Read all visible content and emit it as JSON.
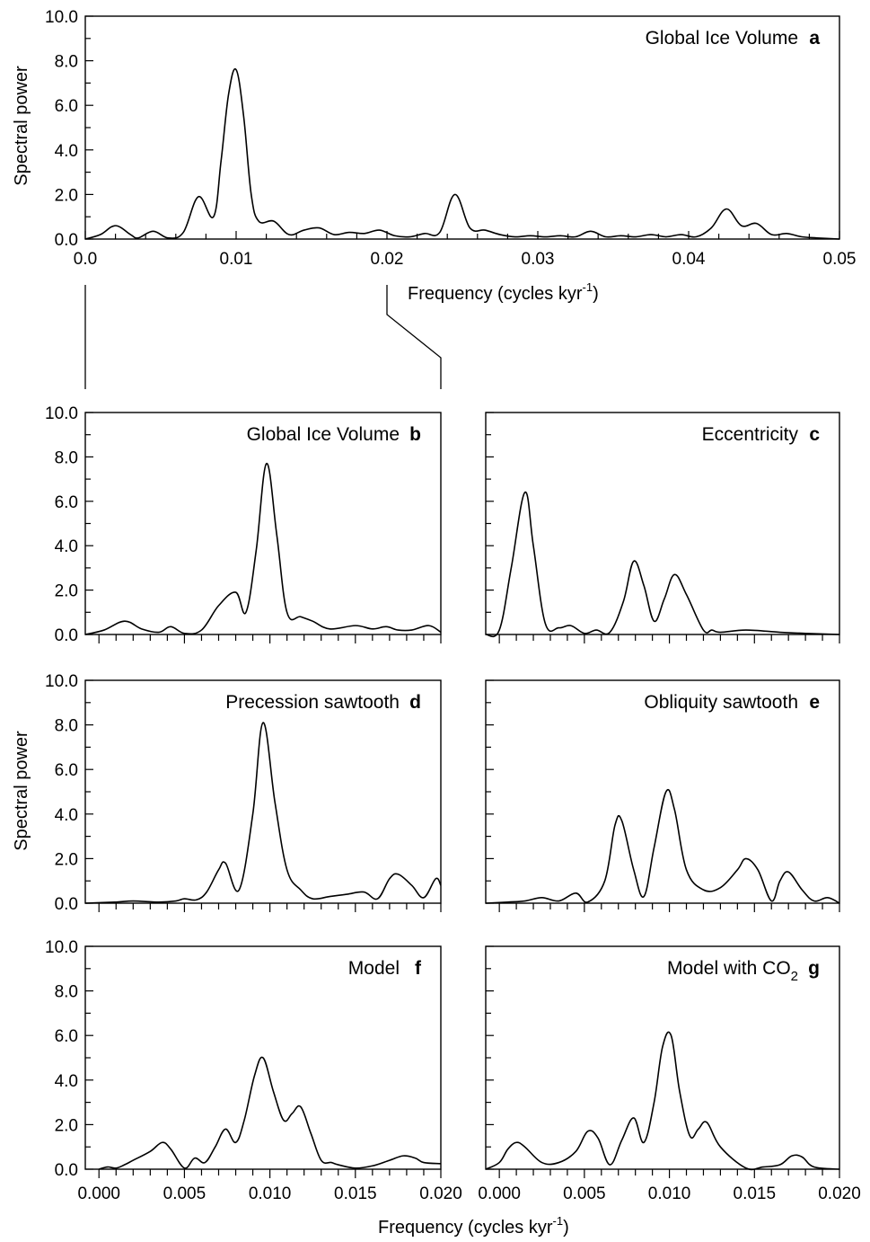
{
  "figure": {
    "ylabel": "Spectral power",
    "xlabel": "Frequency (cycles kyr",
    "xlabel_sup": "-1",
    "xlabel_tail": ")"
  },
  "chart_data": [
    {
      "id": "a",
      "type": "line",
      "title": "Global Ice Volume",
      "letter": "a",
      "xlabel": "Frequency (cycles kyr^-1)",
      "ylabel": "Spectral power",
      "xlim": [
        0,
        0.05
      ],
      "ylim": [
        0,
        10
      ],
      "xticks": [
        "0.0",
        "0.01",
        "0.02",
        "0.03",
        "0.04",
        "0.05"
      ],
      "yticks": [
        "0.0",
        "2.0",
        "4.0",
        "6.0",
        "8.0",
        "10.0"
      ],
      "x": [
        0,
        0.001,
        0.002,
        0.003,
        0.0035,
        0.0045,
        0.0055,
        0.0065,
        0.0075,
        0.0085,
        0.009,
        0.0095,
        0.01,
        0.0105,
        0.011,
        0.0115,
        0.0125,
        0.0135,
        0.0145,
        0.0155,
        0.0165,
        0.0175,
        0.0185,
        0.0195,
        0.0205,
        0.0215,
        0.0225,
        0.0235,
        0.0245,
        0.0255,
        0.0265,
        0.0275,
        0.0285,
        0.0295,
        0.0305,
        0.0315,
        0.0325,
        0.0335,
        0.0345,
        0.0355,
        0.0365,
        0.0375,
        0.0385,
        0.0395,
        0.0405,
        0.0415,
        0.0425,
        0.0435,
        0.0445,
        0.0455,
        0.0465,
        0.0475,
        0.0485,
        0.05
      ],
      "y": [
        0,
        0.2,
        0.6,
        0.2,
        0.05,
        0.35,
        0.05,
        0.3,
        1.9,
        1.0,
        3.5,
        6.5,
        7.6,
        5.5,
        2.0,
        0.8,
        0.8,
        0.2,
        0.4,
        0.5,
        0.2,
        0.3,
        0.25,
        0.4,
        0.15,
        0.1,
        0.25,
        0.3,
        2.0,
        0.5,
        0.4,
        0.2,
        0.1,
        0.15,
        0.1,
        0.15,
        0.1,
        0.35,
        0.1,
        0.15,
        0.1,
        0.2,
        0.1,
        0.2,
        0.1,
        0.5,
        1.35,
        0.6,
        0.7,
        0.2,
        0.25,
        0.1,
        0.05,
        0
      ]
    },
    {
      "id": "b",
      "type": "line",
      "title": "Global Ice Volume",
      "letter": "b",
      "xlim": [
        -0.0008,
        0.02
      ],
      "ylim": [
        0,
        10
      ],
      "yticks": [
        "0.0",
        "2.0",
        "4.0",
        "6.0",
        "8.0",
        "10.0"
      ],
      "x": [
        -0.0008,
        0.0003,
        0.0015,
        0.0025,
        0.0035,
        0.0042,
        0.005,
        0.006,
        0.007,
        0.008,
        0.0086,
        0.0092,
        0.0098,
        0.0104,
        0.011,
        0.0118,
        0.0125,
        0.0135,
        0.015,
        0.016,
        0.0168,
        0.0175,
        0.0183,
        0.0193,
        0.02
      ],
      "y": [
        0,
        0.2,
        0.6,
        0.25,
        0.1,
        0.35,
        0.05,
        0.2,
        1.3,
        1.9,
        1.0,
        3.8,
        7.7,
        4.5,
        1.0,
        0.8,
        0.6,
        0.25,
        0.4,
        0.25,
        0.35,
        0.2,
        0.2,
        0.4,
        0.1
      ]
    },
    {
      "id": "c",
      "type": "line",
      "title": "Eccentricity",
      "letter": "c",
      "xlim": [
        -0.0008,
        0.02
      ],
      "ylim": [
        0,
        10
      ],
      "yticks": [],
      "x": [
        -0.0008,
        0.0,
        0.0007,
        0.0015,
        0.002,
        0.0027,
        0.0035,
        0.0042,
        0.005,
        0.0057,
        0.0065,
        0.0073,
        0.0079,
        0.0085,
        0.0091,
        0.0097,
        0.0103,
        0.011,
        0.012,
        0.0125,
        0.013,
        0.0145,
        0.0165,
        0.018,
        0.02
      ],
      "y": [
        0,
        0.2,
        3.0,
        6.4,
        4.0,
        0.5,
        0.3,
        0.4,
        0.05,
        0.2,
        0.1,
        1.5,
        3.3,
        2.2,
        0.6,
        1.6,
        2.7,
        1.8,
        0.2,
        0.2,
        0.1,
        0.2,
        0.1,
        0.05,
        0
      ]
    },
    {
      "id": "d",
      "type": "line",
      "title": "Precession sawtooth",
      "letter": "d",
      "xlim": [
        -0.0008,
        0.02
      ],
      "ylim": [
        0,
        10
      ],
      "yticks": [
        "0.0",
        "2.0",
        "4.0",
        "6.0",
        "8.0",
        "10.0"
      ],
      "x": [
        -0.0008,
        0.001,
        0.002,
        0.0035,
        0.0045,
        0.005,
        0.0057,
        0.0063,
        0.007,
        0.0074,
        0.0082,
        0.009,
        0.0096,
        0.0103,
        0.011,
        0.0118,
        0.0125,
        0.0135,
        0.0145,
        0.0155,
        0.0163,
        0.017,
        0.0175,
        0.0183,
        0.019,
        0.0197,
        0.02
      ],
      "y": [
        0,
        0.05,
        0.1,
        0.05,
        0.1,
        0.2,
        0.15,
        0.5,
        1.5,
        1.8,
        0.6,
        4.0,
        8.1,
        4.5,
        1.5,
        0.6,
        0.2,
        0.3,
        0.4,
        0.5,
        0.2,
        1.1,
        1.3,
        0.8,
        0.25,
        1.1,
        0.8
      ]
    },
    {
      "id": "e",
      "type": "line",
      "title": "Obliquity sawtooth",
      "letter": "e",
      "xlim": [
        -0.0008,
        0.02
      ],
      "ylim": [
        0,
        10
      ],
      "yticks": [],
      "x": [
        -0.0008,
        0.0005,
        0.0015,
        0.0025,
        0.0035,
        0.0045,
        0.0052,
        0.0062,
        0.0068,
        0.0072,
        0.0079,
        0.0085,
        0.0091,
        0.0098,
        0.0103,
        0.011,
        0.012,
        0.013,
        0.014,
        0.0145,
        0.0152,
        0.016,
        0.0165,
        0.017,
        0.0178,
        0.0185,
        0.0193,
        0.02
      ],
      "y": [
        0,
        0.05,
        0.1,
        0.25,
        0.1,
        0.45,
        0.05,
        1.0,
        3.5,
        3.7,
        1.5,
        0.3,
        2.5,
        5.0,
        4.2,
        1.5,
        0.6,
        0.7,
        1.5,
        2.0,
        1.5,
        0.1,
        1.0,
        1.4,
        0.6,
        0.1,
        0.25,
        0
      ]
    },
    {
      "id": "f",
      "type": "line",
      "title": "Model",
      "letter": "f",
      "xlim": [
        -0.0008,
        0.02
      ],
      "xticks": [
        "0.000",
        "0.005",
        "0.010",
        "0.015",
        "0.020"
      ],
      "ylim": [
        0,
        10
      ],
      "yticks": [
        "0.0",
        "2.0",
        "4.0",
        "6.0",
        "8.0",
        "10.0"
      ],
      "x": [
        0,
        0.0005,
        0.001,
        0.0015,
        0.002,
        0.003,
        0.0037,
        0.0042,
        0.005,
        0.0056,
        0.0062,
        0.0068,
        0.0074,
        0.008,
        0.0085,
        0.0091,
        0.0096,
        0.0102,
        0.0108,
        0.0113,
        0.0118,
        0.0124,
        0.013,
        0.0136,
        0.014,
        0.015,
        0.016,
        0.017,
        0.0178,
        0.0185,
        0.019,
        0.02
      ],
      "y": [
        0,
        0.1,
        0.05,
        0.2,
        0.4,
        0.8,
        1.2,
        0.9,
        0.05,
        0.5,
        0.3,
        1.0,
        1.8,
        1.2,
        2.2,
        4.2,
        5.0,
        3.5,
        2.2,
        2.5,
        2.8,
        1.6,
        0.4,
        0.3,
        0.2,
        0.05,
        0.15,
        0.4,
        0.6,
        0.5,
        0.3,
        0.25
      ]
    },
    {
      "id": "g",
      "type": "line",
      "title": "Model with CO",
      "title_sub": "2",
      "letter": "g",
      "xlim": [
        -0.0008,
        0.02
      ],
      "xticks": [
        "0.000",
        "0.005",
        "0.010",
        "0.015",
        "0.020"
      ],
      "ylim": [
        0,
        10
      ],
      "yticks": [],
      "x": [
        -0.0008,
        0.0,
        0.0005,
        0.001,
        0.0015,
        0.0025,
        0.0035,
        0.0045,
        0.0052,
        0.0058,
        0.0065,
        0.0072,
        0.0079,
        0.0085,
        0.0091,
        0.0096,
        0.0101,
        0.0106,
        0.0112,
        0.0117,
        0.0122,
        0.013,
        0.0145,
        0.0155,
        0.0165,
        0.0172,
        0.0178,
        0.0185,
        0.02
      ],
      "y": [
        0,
        0.3,
        0.9,
        1.2,
        1.0,
        0.3,
        0.3,
        0.8,
        1.7,
        1.4,
        0.2,
        1.3,
        2.3,
        1.2,
        3.0,
        5.5,
        6.0,
        3.5,
        1.5,
        1.8,
        2.1,
        1.0,
        0.05,
        0.1,
        0.2,
        0.6,
        0.55,
        0.1,
        0
      ]
    }
  ]
}
